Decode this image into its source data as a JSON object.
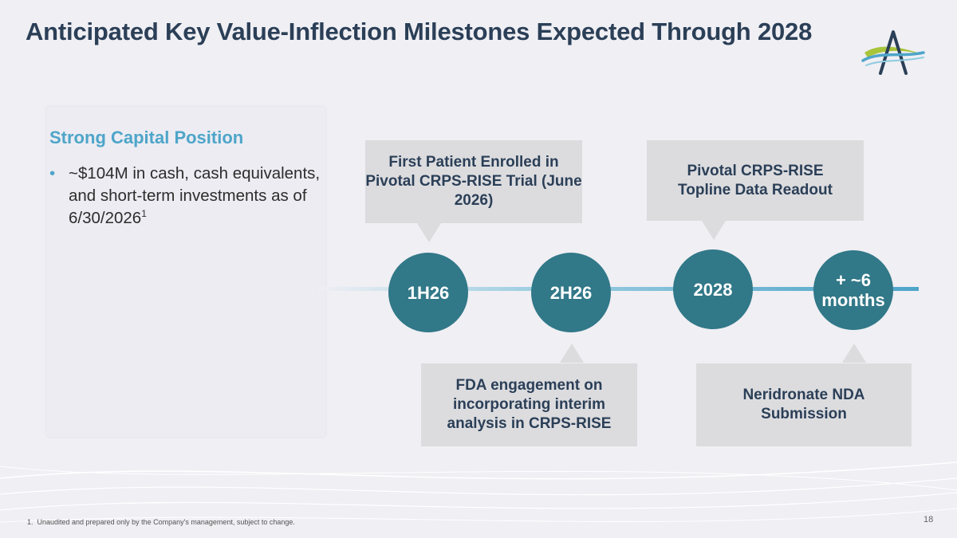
{
  "slide": {
    "title": "Anticipated Key Value-Inflection Milestones Expected Through 2028",
    "page_number": "18",
    "footnote": "1.  Unaudited and prepared only by the Company's management, subject to change."
  },
  "capital": {
    "heading": "Strong Capital Position",
    "bullet_marker": "•",
    "bullet_text": "~$104M in cash, cash equivalents, and short-term investments as of 6/30/2026",
    "footnote_ref": "1"
  },
  "timeline": {
    "milestones": [
      {
        "label": "1H26"
      },
      {
        "label": "2H26"
      },
      {
        "label": "2028"
      },
      {
        "label": "+ ~6 months"
      }
    ],
    "callouts_top": [
      {
        "text": "First Patient Enrolled in Pivotal CRPS-RISE Trial (June 2026)"
      },
      {
        "text": "Pivotal CRPS-RISE Topline Data Readout"
      }
    ],
    "callouts_bottom": [
      {
        "text": "FDA engagement on incorporating interim analysis in CRPS-RISE"
      },
      {
        "text": "Neridronate NDA Submission"
      }
    ]
  },
  "colors": {
    "title": "#2b3f57",
    "accent_blue": "#4ea5c9",
    "circle_teal": "#317888",
    "callout_gray": "#dcdcdf",
    "logo_green": "#a8c43a"
  }
}
